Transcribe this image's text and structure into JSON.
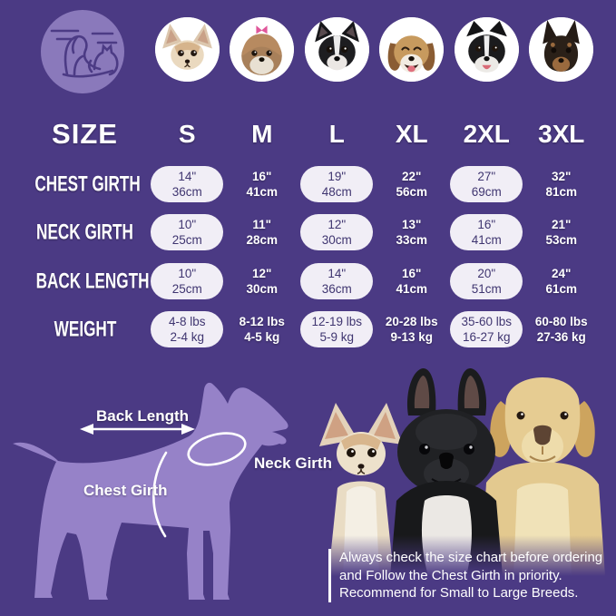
{
  "colors": {
    "background": "#4b3a84",
    "pill_fill": "#f1eef6",
    "pill_text": "#3f3570",
    "text": "#ffffff",
    "silhouette": "#9682c8",
    "logo_circle": "#8a79bb"
  },
  "header": {
    "size_title": "SIZE",
    "columns": [
      {
        "size": "S",
        "breed": "Chihuahua"
      },
      {
        "size": "M",
        "breed": "Shih Tzu"
      },
      {
        "size": "L",
        "breed": "Boston Terrier"
      },
      {
        "size": "XL",
        "breed": "Beagle"
      },
      {
        "size": "2XL",
        "breed": "Border Collie"
      },
      {
        "size": "3XL",
        "breed": "Doberman"
      }
    ]
  },
  "chart_data": {
    "type": "table",
    "columns": [
      "S",
      "M",
      "L",
      "XL",
      "2XL",
      "3XL"
    ],
    "rows": [
      {
        "label": "CHEST GIRTH",
        "values": [
          [
            "14\"",
            "36cm"
          ],
          [
            "16\"",
            "41cm"
          ],
          [
            "19\"",
            "48cm"
          ],
          [
            "22\"",
            "56cm"
          ],
          [
            "27\"",
            "69cm"
          ],
          [
            "32\"",
            "81cm"
          ]
        ]
      },
      {
        "label": "NECK GIRTH",
        "values": [
          [
            "10\"",
            "25cm"
          ],
          [
            "11\"",
            "28cm"
          ],
          [
            "12\"",
            "30cm"
          ],
          [
            "13\"",
            "33cm"
          ],
          [
            "16\"",
            "41cm"
          ],
          [
            "21\"",
            "53cm"
          ]
        ]
      },
      {
        "label": "BACK LENGTH",
        "values": [
          [
            "10\"",
            "25cm"
          ],
          [
            "12\"",
            "30cm"
          ],
          [
            "14\"",
            "36cm"
          ],
          [
            "16\"",
            "41cm"
          ],
          [
            "20\"",
            "51cm"
          ],
          [
            "24\"",
            "61cm"
          ]
        ]
      },
      {
        "label": "WEIGHT",
        "values": [
          [
            "4-8 lbs",
            "2-4 kg"
          ],
          [
            "8-12 lbs",
            "4-5 kg"
          ],
          [
            "12-19 lbs",
            "5-9 kg"
          ],
          [
            "20-28 lbs",
            "9-13 kg"
          ],
          [
            "35-60 lbs",
            "16-27 kg"
          ],
          [
            "60-80 lbs",
            "27-36 kg"
          ]
        ]
      }
    ]
  },
  "diagram": {
    "back_length": "Back Length",
    "neck_girth": "Neck Girth",
    "chest_girth": "Chest Girth"
  },
  "note": {
    "lines": [
      "Always check the size chart before ordering",
      "and Follow the Chest Girth in priority.",
      "Recommend for Small to Large Breeds."
    ]
  }
}
